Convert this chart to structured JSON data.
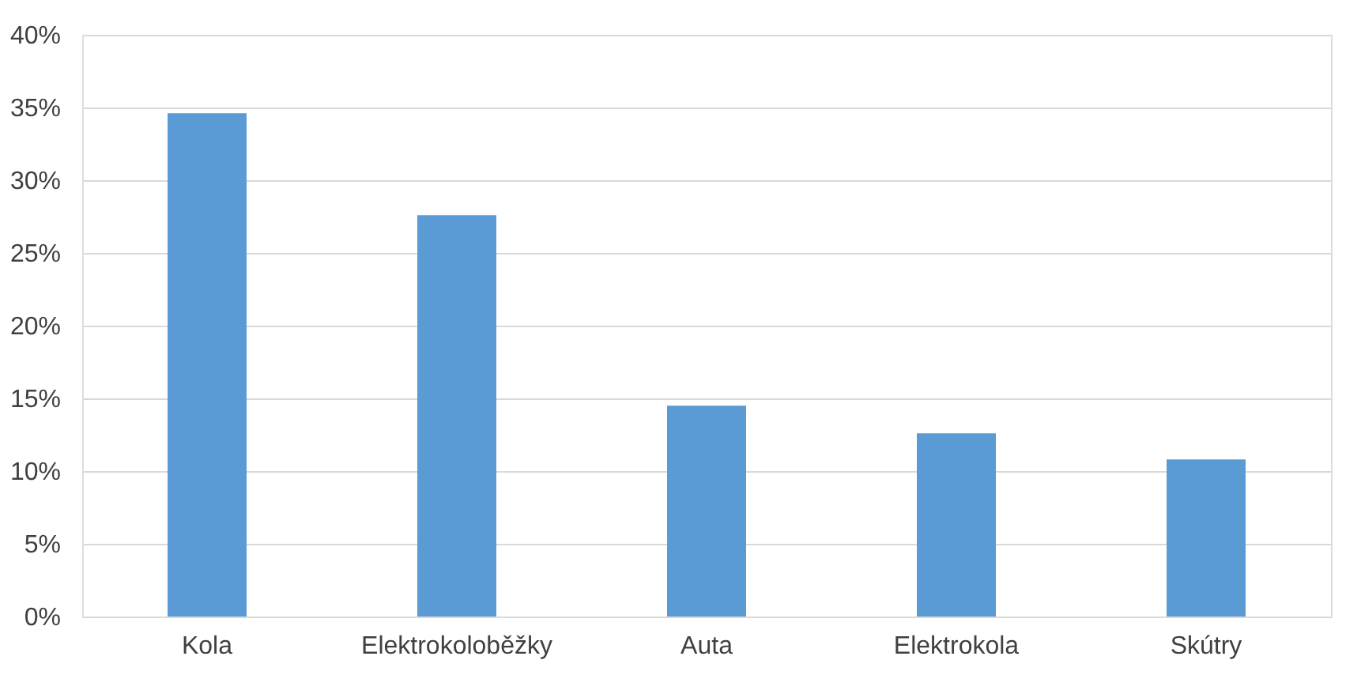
{
  "chart_data": {
    "type": "bar",
    "categories": [
      "Kola",
      "Elektrokoloběžky",
      "Auta",
      "Elektrokola",
      "Skútry"
    ],
    "values": [
      34.6,
      27.6,
      14.5,
      12.6,
      10.8
    ],
    "color": "#5b9bd5",
    "ylim": [
      0,
      40
    ],
    "yticks": [
      {
        "value": 0,
        "label": "0%"
      },
      {
        "value": 5,
        "label": "5%"
      },
      {
        "value": 10,
        "label": "10%"
      },
      {
        "value": 15,
        "label": "15%"
      },
      {
        "value": 20,
        "label": "20%"
      },
      {
        "value": 25,
        "label": "25%"
      },
      {
        "value": 30,
        "label": "30%"
      },
      {
        "value": 35,
        "label": "35%"
      },
      {
        "value": 40,
        "label": "40%"
      }
    ],
    "grid": "y"
  }
}
